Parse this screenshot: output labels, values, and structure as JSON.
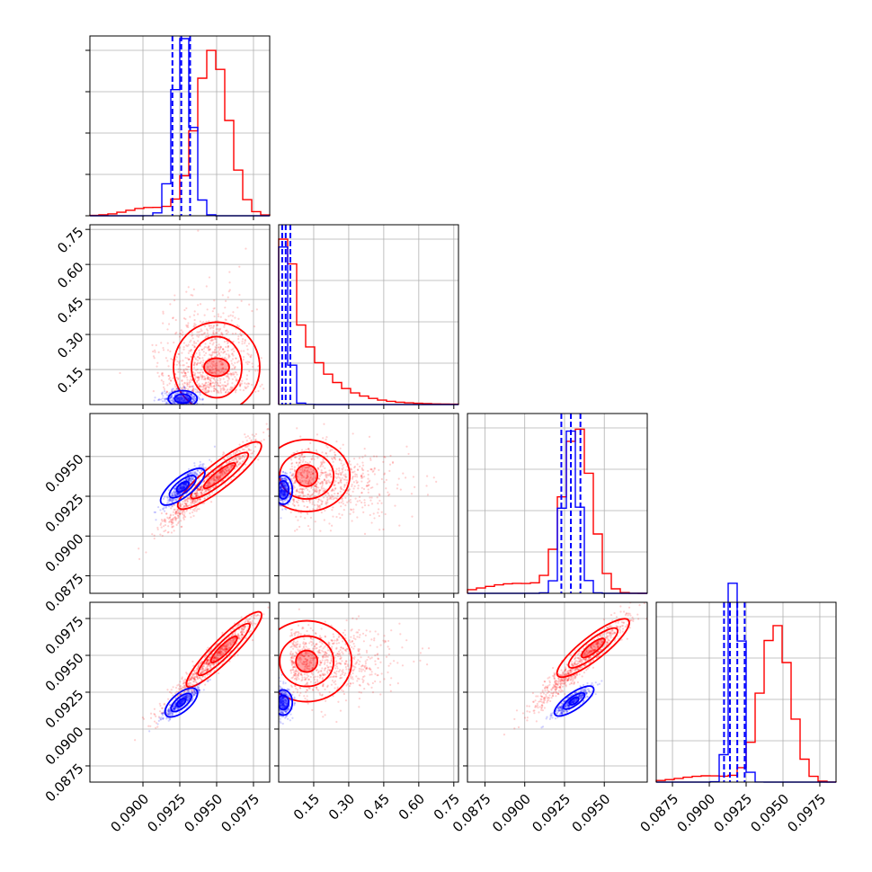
{
  "chart_data": {
    "type": "corner",
    "colors": {
      "blue": "#0000ff",
      "red": "#ff0000"
    },
    "ticks": {
      "param1": [
        "0.0900",
        "0.0925",
        "0.0950",
        "0.0975"
      ],
      "param2": [
        "0.15",
        "0.30",
        "0.45",
        "0.60",
        "0.75"
      ],
      "param3": [
        "0.0875",
        "0.0900",
        "0.0925",
        "0.0950"
      ],
      "param4": [
        "0.0875",
        "0.0900",
        "0.0925",
        "0.0950",
        "0.0975"
      ]
    },
    "ranges": {
      "param1": [
        0.0864,
        0.0986
      ],
      "param2": [
        0.0,
        0.77
      ],
      "param3": [
        0.0864,
        0.0977
      ],
      "param4": [
        0.0864,
        0.0986
      ]
    },
    "grid": true,
    "marginals": {
      "param1": {
        "blue": {
          "mean": 0.0927,
          "sd": 0.0006,
          "quantiles": [
            0.092,
            0.0926,
            0.0932
          ]
        },
        "red": {
          "mean": 0.0947,
          "sd": 0.0011
        }
      },
      "param2": {
        "blue": {
          "mode": 0.03,
          "quantiles": [
            0.015,
            0.03,
            0.05
          ]
        },
        "red": {
          "mode": 0.05,
          "skew": "right"
        }
      },
      "param3": {
        "blue": {
          "mean": 0.0929,
          "sd": 0.0005,
          "quantiles": [
            0.0923,
            0.0929,
            0.0935
          ]
        },
        "red": {
          "mean": 0.0933,
          "sd": 0.0009
        }
      },
      "param4": {
        "blue": {
          "mean": 0.0918,
          "sd": 0.0004,
          "quantiles": [
            0.091,
            0.0914,
            0.0919,
            0.0924
          ]
        },
        "red": {
          "mean": 0.0945,
          "sd": 0.001
        }
      }
    }
  }
}
